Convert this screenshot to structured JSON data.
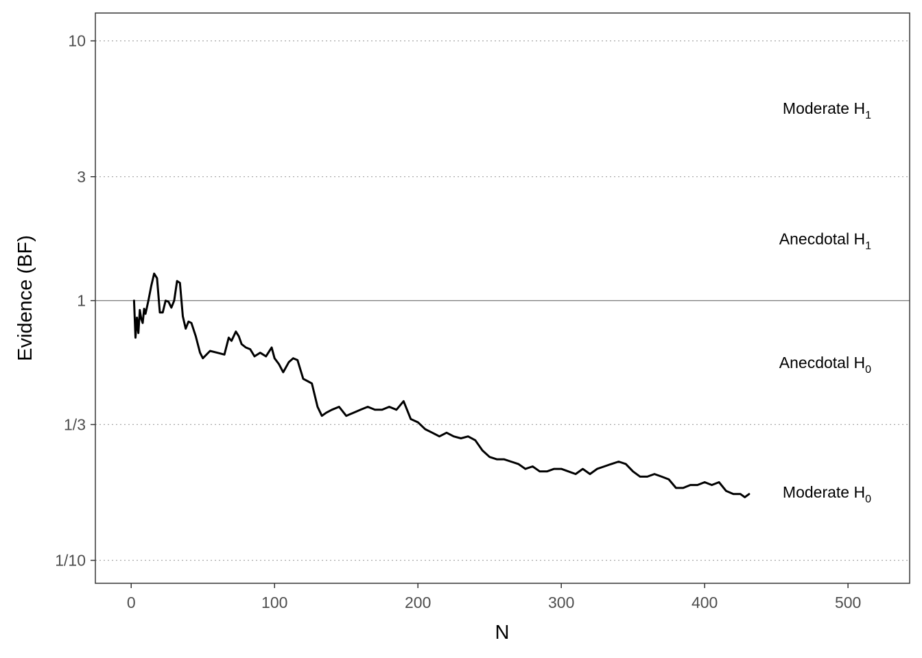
{
  "chart_data": {
    "type": "line",
    "xlabel": "N",
    "ylabel": "Evidence (BF)",
    "x_scale": "linear",
    "y_scale": "log",
    "xlim": [
      -25,
      543
    ],
    "ylim": [
      0.0816,
      12.8
    ],
    "x_ticks": [
      {
        "value": 0,
        "label": "0"
      },
      {
        "value": 100,
        "label": "100"
      },
      {
        "value": 200,
        "label": "200"
      },
      {
        "value": 300,
        "label": "300"
      },
      {
        "value": 400,
        "label": "400"
      },
      {
        "value": 500,
        "label": "500"
      }
    ],
    "y_ticks": [
      {
        "value": 10,
        "label": "10"
      },
      {
        "value": 3,
        "label": "3"
      },
      {
        "value": 1,
        "label": "1"
      },
      {
        "value": 0.3333,
        "label": "1/3"
      },
      {
        "value": 0.1,
        "label": "1/10"
      }
    ],
    "grid": "dotted horizontal lines at 10, 3, 1/3 and 1/10; solid reference line at 1",
    "region_labels": [
      {
        "main": "Moderate H",
        "sub": "1",
        "y": 5.5
      },
      {
        "main": "Anecdotal H",
        "sub": "1",
        "y": 1.73
      },
      {
        "main": "Anecdotal H",
        "sub": "0",
        "y": 0.577
      },
      {
        "main": "Moderate H",
        "sub": "0",
        "y": 0.183
      }
    ],
    "series": [
      {
        "x": [
          2,
          3,
          4,
          5,
          6,
          7,
          8,
          9,
          10,
          12,
          14,
          16,
          18,
          20,
          22,
          24,
          26,
          28,
          30,
          32,
          34,
          36,
          38,
          40,
          42,
          45,
          48,
          50,
          55,
          60,
          65,
          68,
          70,
          73,
          75,
          77,
          80,
          83,
          86,
          90,
          94,
          98,
          100,
          103,
          106,
          110,
          113,
          116,
          120,
          123,
          126,
          130,
          133,
          136,
          140,
          145,
          150,
          155,
          160,
          165,
          170,
          175,
          180,
          185,
          190,
          195,
          200,
          205,
          210,
          215,
          220,
          225,
          230,
          235,
          240,
          245,
          250,
          255,
          260,
          265,
          270,
          275,
          280,
          285,
          290,
          295,
          300,
          305,
          310,
          315,
          320,
          325,
          330,
          335,
          340,
          345,
          350,
          355,
          360,
          365,
          370,
          375,
          380,
          385,
          390,
          395,
          400,
          405,
          410,
          415,
          420,
          425,
          428,
          431
        ],
        "y": [
          1.0,
          0.72,
          0.86,
          0.75,
          0.92,
          0.85,
          0.82,
          0.93,
          0.89,
          1.0,
          1.14,
          1.27,
          1.22,
          0.9,
          0.9,
          1.0,
          0.99,
          0.94,
          1.0,
          1.19,
          1.17,
          0.87,
          0.78,
          0.83,
          0.82,
          0.73,
          0.63,
          0.6,
          0.64,
          0.63,
          0.62,
          0.72,
          0.7,
          0.76,
          0.73,
          0.68,
          0.66,
          0.65,
          0.61,
          0.63,
          0.61,
          0.66,
          0.6,
          0.57,
          0.53,
          0.58,
          0.6,
          0.59,
          0.5,
          0.49,
          0.48,
          0.39,
          0.36,
          0.37,
          0.38,
          0.39,
          0.36,
          0.37,
          0.38,
          0.39,
          0.38,
          0.38,
          0.39,
          0.38,
          0.41,
          0.35,
          0.34,
          0.32,
          0.31,
          0.3,
          0.31,
          0.3,
          0.295,
          0.3,
          0.29,
          0.265,
          0.25,
          0.245,
          0.245,
          0.24,
          0.235,
          0.225,
          0.23,
          0.22,
          0.22,
          0.225,
          0.225,
          0.22,
          0.215,
          0.225,
          0.215,
          0.225,
          0.23,
          0.235,
          0.24,
          0.235,
          0.22,
          0.21,
          0.21,
          0.215,
          0.21,
          0.205,
          0.19,
          0.19,
          0.195,
          0.195,
          0.2,
          0.195,
          0.2,
          0.185,
          0.18,
          0.18,
          0.175,
          0.18
        ]
      }
    ]
  }
}
